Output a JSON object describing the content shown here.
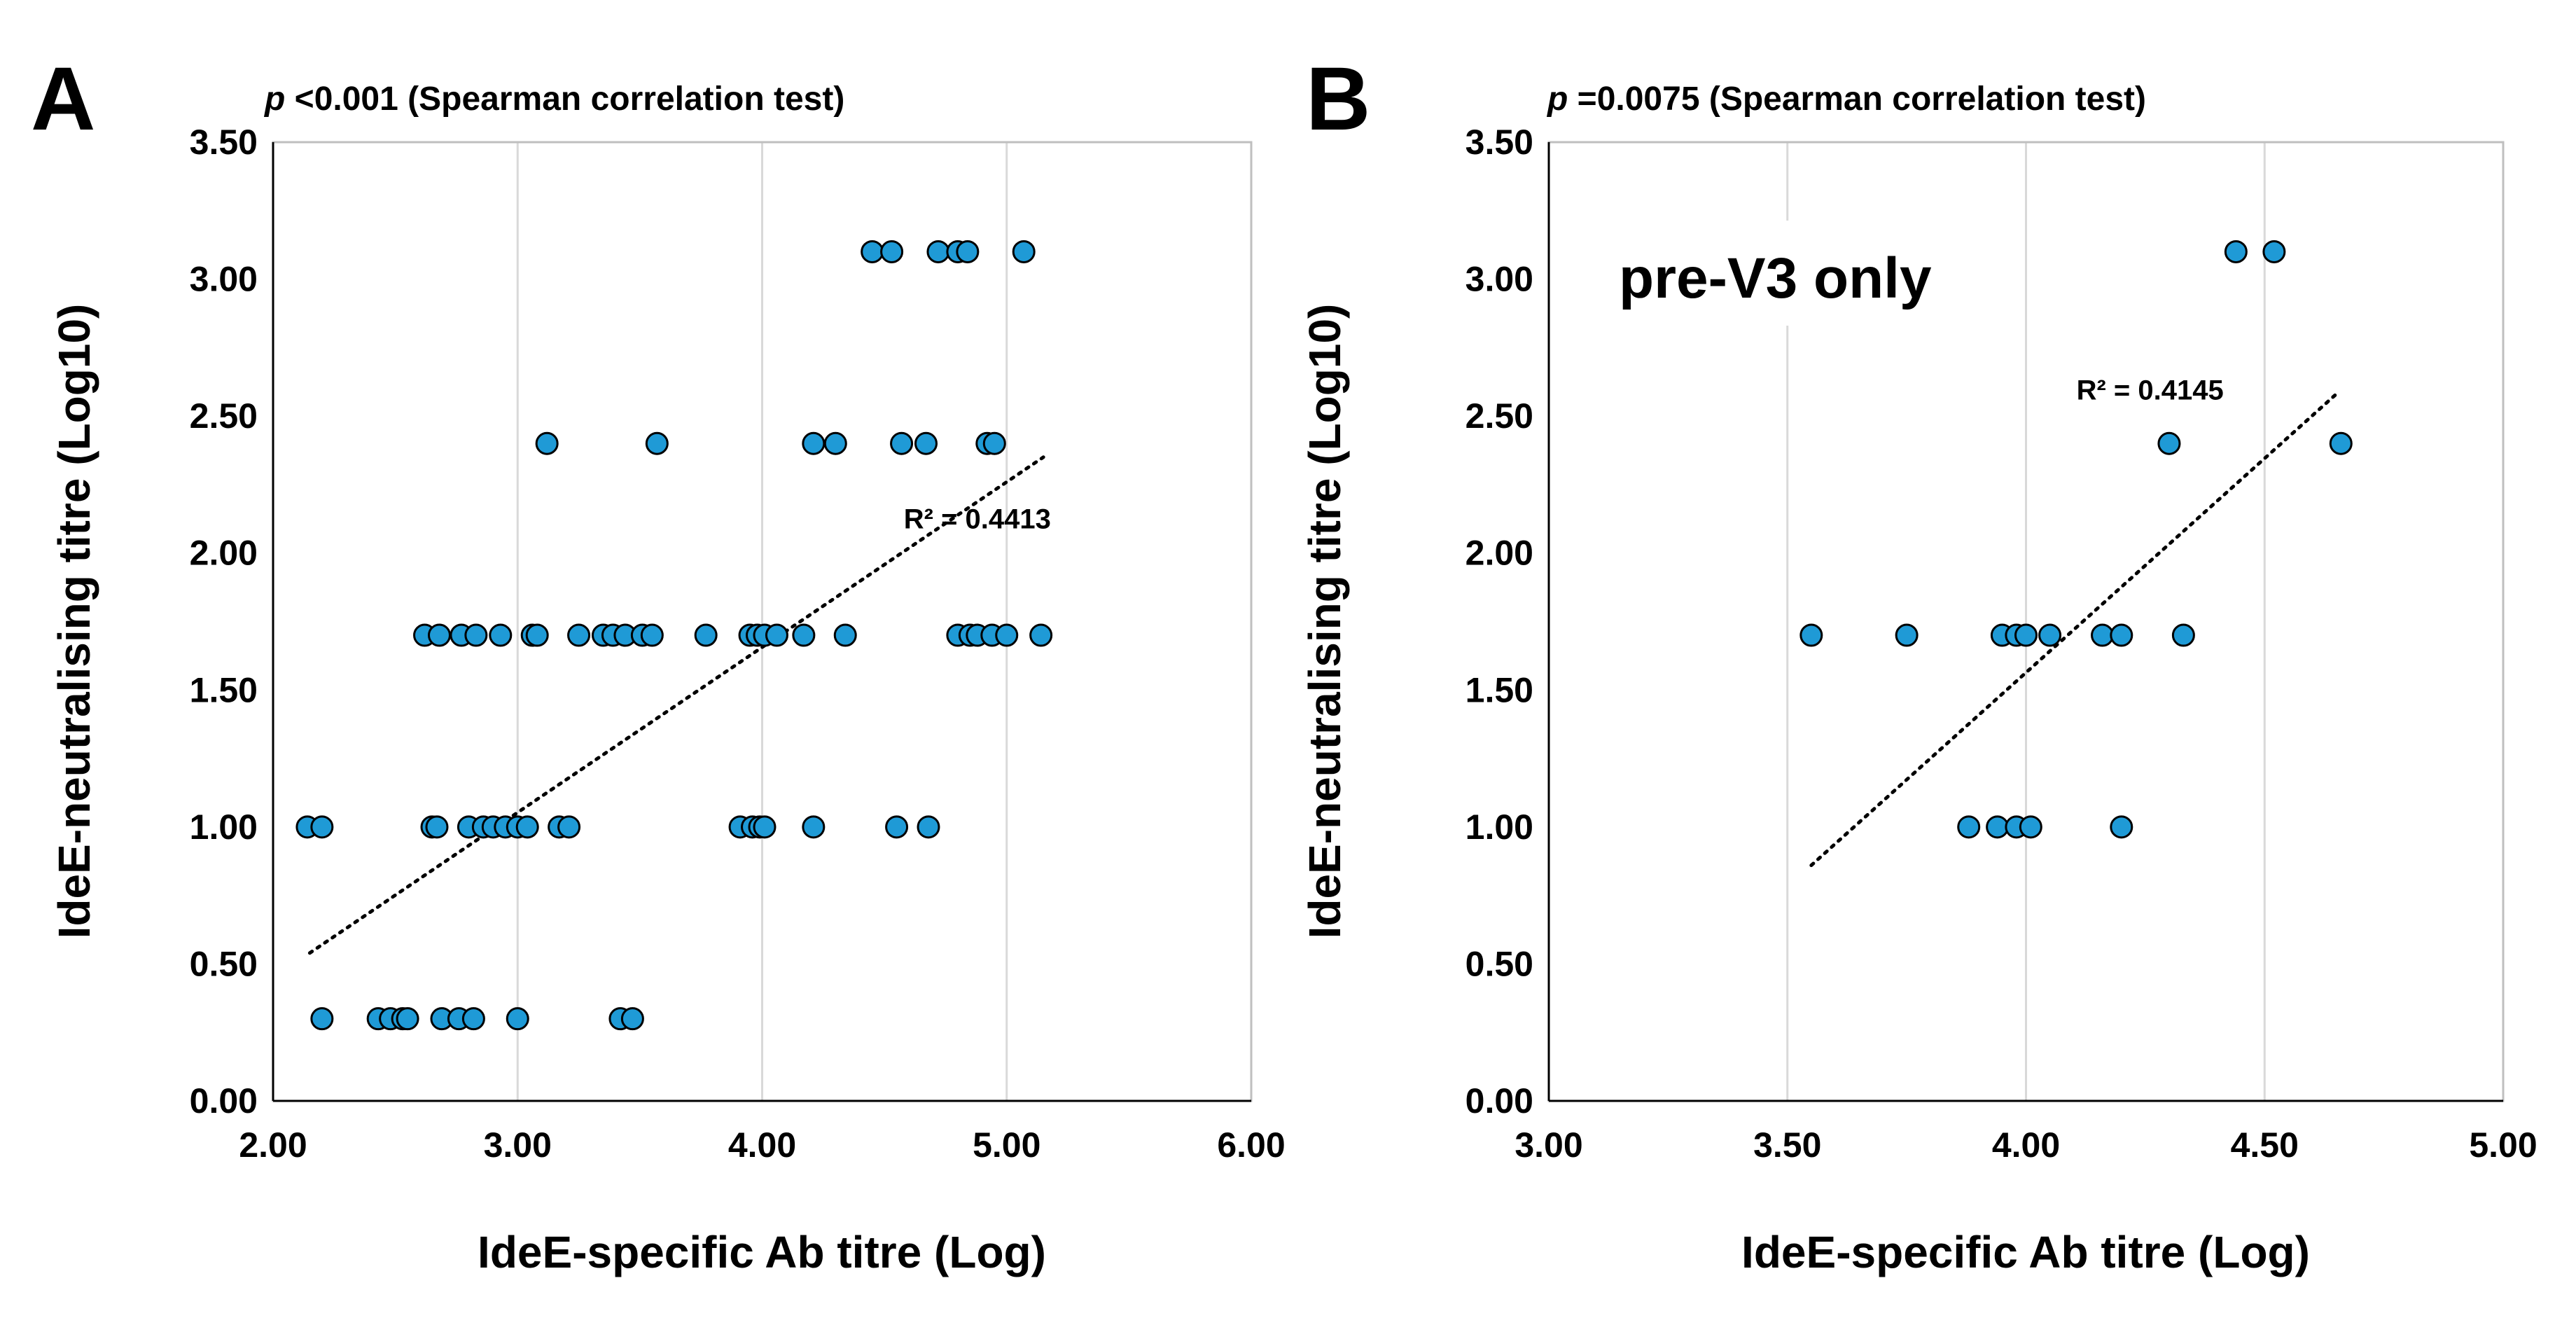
{
  "chart_data": [
    {
      "type": "scatter",
      "panel_label": "A",
      "stat_p": "p",
      "stat_rest": " <0.001 (Spearman correlation test)",
      "xlabel": "IdeE-specific Ab titre (Log)",
      "ylabel": "IdeE-neutralising titre (Log10)",
      "xlim": [
        2.0,
        6.0
      ],
      "ylim": [
        0.0,
        3.5
      ],
      "xticks": [
        "2.00",
        "3.00",
        "4.00",
        "5.00",
        "6.00"
      ],
      "yticks": [
        "0.00",
        "0.50",
        "1.00",
        "1.50",
        "2.00",
        "2.50",
        "3.00",
        "3.50"
      ],
      "grid": "vertical",
      "marker_color": "#1f9ad6",
      "trendline": {
        "x": [
          2.15,
          5.15
        ],
        "y": [
          0.54,
          2.35
        ],
        "r2_label": "R² = 0.4413",
        "r2_anchor": [
          4.88,
          2.09
        ]
      },
      "points": [
        [
          4.45,
          3.1
        ],
        [
          4.53,
          3.1
        ],
        [
          4.72,
          3.1
        ],
        [
          4.8,
          3.1
        ],
        [
          4.84,
          3.1
        ],
        [
          5.07,
          3.1
        ],
        [
          3.12,
          2.4
        ],
        [
          3.57,
          2.4
        ],
        [
          4.21,
          2.4
        ],
        [
          4.3,
          2.4
        ],
        [
          4.57,
          2.4
        ],
        [
          4.67,
          2.4
        ],
        [
          4.92,
          2.4
        ],
        [
          4.95,
          2.4
        ],
        [
          2.62,
          1.7
        ],
        [
          2.68,
          1.7
        ],
        [
          2.77,
          1.7
        ],
        [
          2.83,
          1.7
        ],
        [
          2.93,
          1.7
        ],
        [
          3.06,
          1.7
        ],
        [
          3.08,
          1.7
        ],
        [
          3.25,
          1.7
        ],
        [
          3.35,
          1.7
        ],
        [
          3.39,
          1.7
        ],
        [
          3.44,
          1.7
        ],
        [
          3.51,
          1.7
        ],
        [
          3.55,
          1.7
        ],
        [
          3.77,
          1.7
        ],
        [
          3.95,
          1.7
        ],
        [
          3.98,
          1.7
        ],
        [
          4.01,
          1.7
        ],
        [
          4.06,
          1.7
        ],
        [
          4.17,
          1.7
        ],
        [
          4.34,
          1.7
        ],
        [
          4.8,
          1.7
        ],
        [
          4.85,
          1.7
        ],
        [
          4.88,
          1.7
        ],
        [
          4.94,
          1.7
        ],
        [
          5.0,
          1.7
        ],
        [
          5.14,
          1.7
        ],
        [
          2.14,
          1.0
        ],
        [
          2.2,
          1.0
        ],
        [
          2.65,
          1.0
        ],
        [
          2.67,
          1.0
        ],
        [
          2.8,
          1.0
        ],
        [
          2.86,
          1.0
        ],
        [
          2.9,
          1.0
        ],
        [
          2.95,
          1.0
        ],
        [
          3.0,
          1.0
        ],
        [
          3.04,
          1.0
        ],
        [
          3.17,
          1.0
        ],
        [
          3.21,
          1.0
        ],
        [
          3.91,
          1.0
        ],
        [
          3.96,
          1.0
        ],
        [
          3.99,
          1.0
        ],
        [
          4.01,
          1.0
        ],
        [
          4.21,
          1.0
        ],
        [
          4.55,
          1.0
        ],
        [
          4.68,
          1.0
        ],
        [
          2.2,
          0.3
        ],
        [
          2.43,
          0.3
        ],
        [
          2.48,
          0.3
        ],
        [
          2.53,
          0.3
        ],
        [
          2.55,
          0.3
        ],
        [
          2.69,
          0.3
        ],
        [
          2.76,
          0.3
        ],
        [
          2.82,
          0.3
        ],
        [
          3.0,
          0.3
        ],
        [
          3.42,
          0.3
        ],
        [
          3.47,
          0.3
        ]
      ]
    },
    {
      "type": "scatter",
      "panel_label": "B",
      "stat_p": "p",
      "stat_rest": " =0.0075 (Spearman correlation test)",
      "annotation": "pre-V3 only",
      "xlabel": "IdeE-specific Ab titre (Log)",
      "ylabel": "IdeE-neutralising titre (Log10)",
      "xlim": [
        3.0,
        5.0
      ],
      "ylim": [
        0.0,
        3.5
      ],
      "xticks": [
        "3.00",
        "3.50",
        "4.00",
        "4.50",
        "5.00"
      ],
      "yticks": [
        "0.00",
        "0.50",
        "1.00",
        "1.50",
        "2.00",
        "2.50",
        "3.00",
        "3.50"
      ],
      "grid": "vertical",
      "marker_color": "#1f9ad6",
      "trendline": {
        "x": [
          3.55,
          4.65
        ],
        "y": [
          0.86,
          2.58
        ],
        "r2_label": "R² = 0.4145",
        "r2_anchor": [
          4.26,
          2.56
        ]
      },
      "points": [
        [
          4.44,
          3.1
        ],
        [
          4.52,
          3.1
        ],
        [
          4.3,
          2.4
        ],
        [
          4.66,
          2.4
        ],
        [
          3.55,
          1.7
        ],
        [
          3.75,
          1.7
        ],
        [
          3.95,
          1.7
        ],
        [
          3.98,
          1.7
        ],
        [
          4.0,
          1.7
        ],
        [
          4.05,
          1.7
        ],
        [
          4.16,
          1.7
        ],
        [
          4.2,
          1.7
        ],
        [
          4.33,
          1.7
        ],
        [
          3.88,
          1.0
        ],
        [
          3.94,
          1.0
        ],
        [
          3.98,
          1.0
        ],
        [
          4.01,
          1.0
        ],
        [
          4.2,
          1.0
        ]
      ]
    }
  ]
}
